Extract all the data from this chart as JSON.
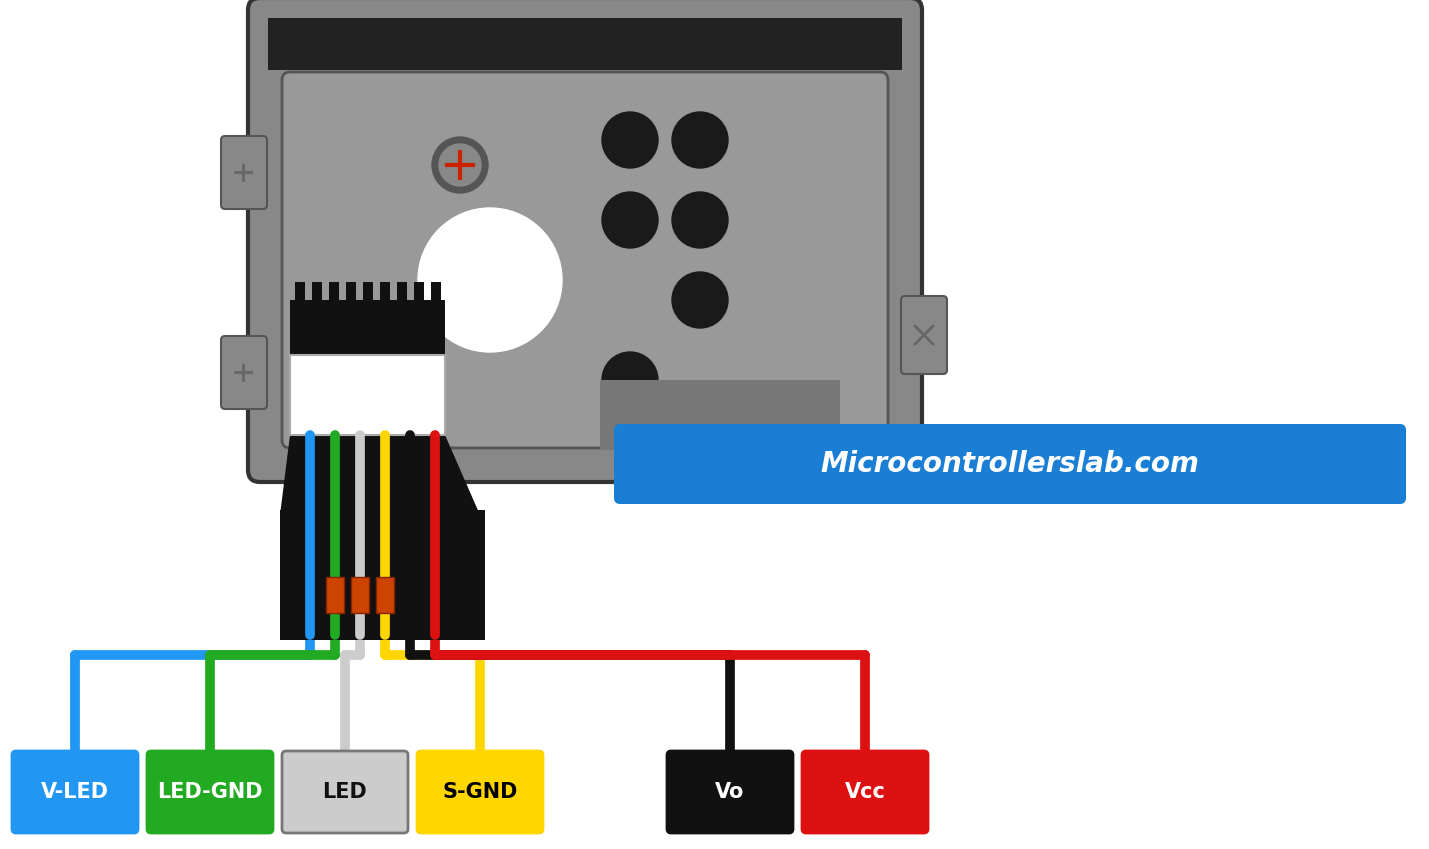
{
  "bg_color": "#ffffff",
  "title_text": "Microcontrollerslab.com",
  "title_bg": "#1a7fd4",
  "title_fg": "#ffffff",
  "fig_w": 14.29,
  "fig_h": 8.49,
  "dpi": 100,
  "pins": [
    {
      "label": "V-LED",
      "color": "#2196F3",
      "text_color": "#ffffff",
      "wire_color": "#2196F3"
    },
    {
      "label": "LED-GND",
      "color": "#22aa22",
      "text_color": "#ffffff",
      "wire_color": "#22aa22"
    },
    {
      "label": "LED",
      "color": "#cccccc",
      "text_color": "#111111",
      "wire_color": "#cccccc"
    },
    {
      "label": "S-GND",
      "color": "#FFD600",
      "text_color": "#000000",
      "wire_color": "#FFD600"
    },
    {
      "label": "Vo",
      "color": "#111111",
      "text_color": "#ffffff",
      "wire_color": "#111111"
    },
    {
      "label": "Vcc",
      "color": "#dd1111",
      "text_color": "#ffffff",
      "wire_color": "#dd1111"
    }
  ]
}
